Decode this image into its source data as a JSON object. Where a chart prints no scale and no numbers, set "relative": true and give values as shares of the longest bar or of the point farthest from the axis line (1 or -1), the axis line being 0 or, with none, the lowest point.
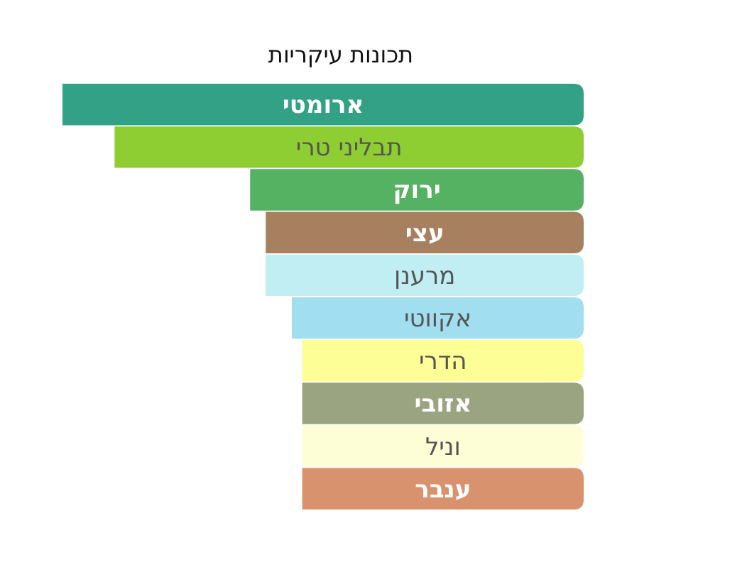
{
  "chart_data": {
    "type": "bar",
    "orientation": "horizontal",
    "relative": true,
    "title": "תכונות עיקריות",
    "categories": [
      "ארומטי",
      "תבליני טרי",
      "ירוק",
      "עצי",
      "מרענן",
      "אקווטי",
      "הדרי",
      "אזובי",
      "וניל",
      "ענבר"
    ],
    "values": [
      1,
      0.9,
      0.64,
      0.61,
      0.61,
      0.56,
      0.54,
      0.54,
      0.54,
      0.54
    ],
    "colors": [
      "#33a186",
      "#8fce32",
      "#55b262",
      "#a78060",
      "#c0eef3",
      "#a1dff0",
      "#fdfe96",
      "#9ba480",
      "#fefed6",
      "#d8936e"
    ]
  }
}
